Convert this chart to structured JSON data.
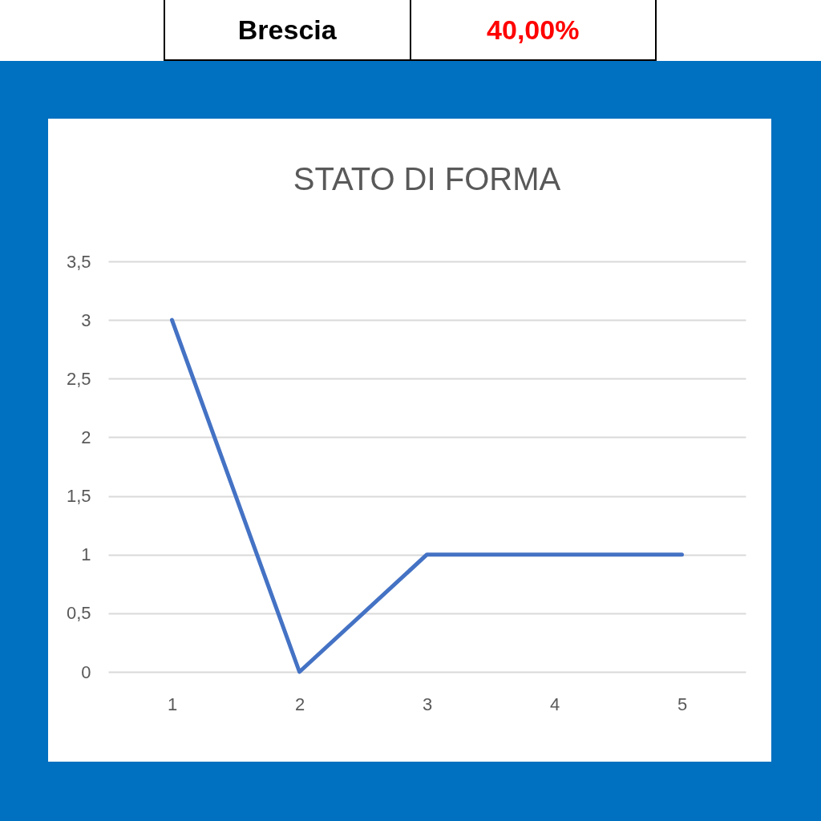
{
  "chart_data": {
    "type": "line",
    "title": "STATO DI FORMA",
    "categories": [
      "1",
      "2",
      "3",
      "4",
      "5"
    ],
    "series": [
      {
        "color": "#4472c4",
        "values": [
          3,
          0,
          1,
          1,
          1
        ]
      }
    ],
    "ylim": [
      0,
      3.5
    ],
    "yticks": [
      0,
      {
        "value": 0.5,
        "label": "0,5"
      },
      1,
      {
        "value": 1.5,
        "label": "1,5"
      },
      2,
      {
        "value": 2.5,
        "label": "2,5"
      },
      3,
      {
        "value": 3.5,
        "label": "3,5"
      }
    ],
    "grid": "y",
    "legend": false,
    "marker": "none",
    "line_style": "solid",
    "annotations": [
      "Brescia",
      "40,00%"
    ]
  }
}
